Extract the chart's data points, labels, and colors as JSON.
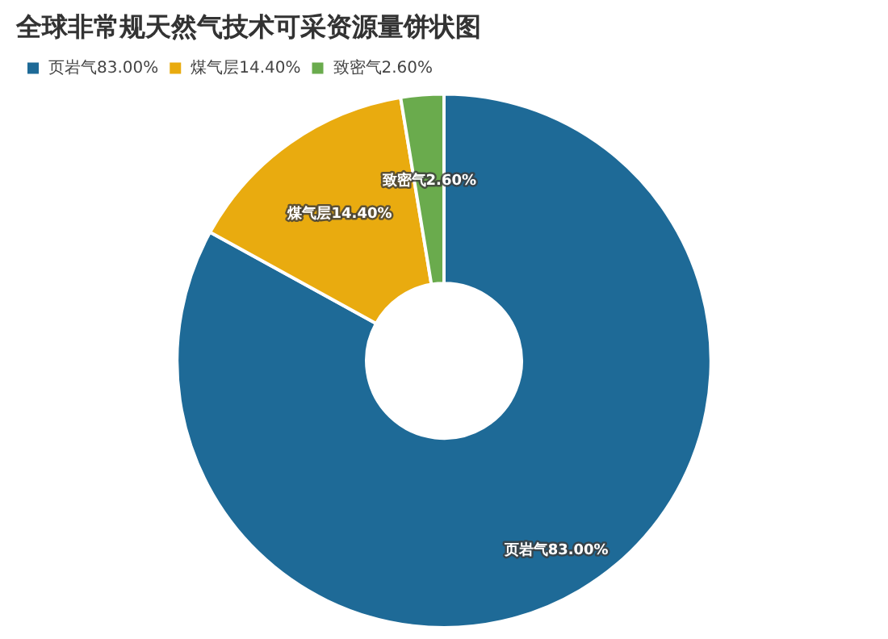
{
  "chart_data": {
    "type": "donut",
    "title": "全球非常规天然气技术可采资源量饼状图",
    "categories": [
      "页岩气83.00%",
      "煤气层14.40%",
      "致密气2.60%"
    ],
    "values": [
      83,
      14.4,
      2.6
    ],
    "colors": [
      "#1e6a97",
      "#e9ab0f",
      "#6aab4d"
    ],
    "legend": "top left"
  }
}
